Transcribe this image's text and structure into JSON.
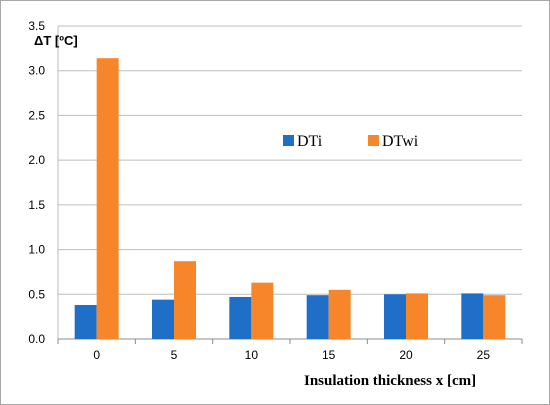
{
  "chart_data": {
    "type": "bar",
    "categories": [
      "0",
      "5",
      "10",
      "15",
      "20",
      "25"
    ],
    "series": [
      {
        "name": "DTi",
        "color": "#1f6fc8",
        "values": [
          0.38,
          0.44,
          0.47,
          0.49,
          0.5,
          0.51
        ]
      },
      {
        "name": "DTwi",
        "color": "#f7862a",
        "values": [
          3.14,
          0.87,
          0.63,
          0.55,
          0.51,
          0.49
        ]
      }
    ],
    "yticks": [
      "0.0",
      "0.5",
      "1.0",
      "1.5",
      "2.0",
      "2.5",
      "3.0",
      "3.5"
    ],
    "ylim": [
      0,
      3.5
    ],
    "ylabel": "ΔT [ºC]",
    "xlabel": "Insulation thickness x [cm]",
    "grid": true,
    "legend_position": "center-right"
  }
}
